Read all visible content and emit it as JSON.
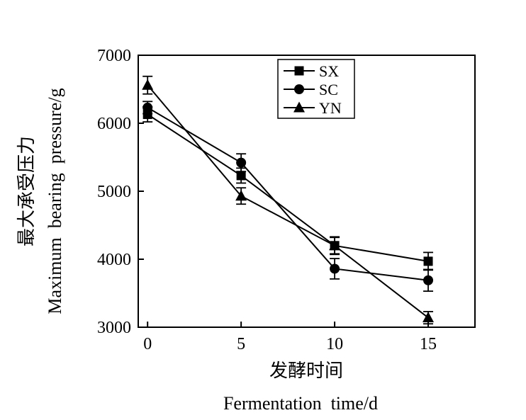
{
  "chart_data": {
    "type": "line",
    "x": [
      0,
      5,
      10,
      15
    ],
    "xlim": [
      -0.5,
      17.5
    ],
    "ylim": [
      3000,
      7000
    ],
    "x_ticks": [
      0,
      5,
      10,
      15
    ],
    "y_ticks": [
      3000,
      4000,
      5000,
      6000,
      7000
    ],
    "x_tick_labels": [
      "0",
      "5",
      "10",
      "15"
    ],
    "y_tick_labels": [
      "3000",
      "4000",
      "5000",
      "6000",
      "7000"
    ],
    "xlabel_cn": "发酵时间",
    "xlabel_en": "Fermentation  time/d",
    "ylabel_cn": "最大承受压力",
    "ylabel_en": "Maximum  bearing  pressure/g",
    "grid": false,
    "legend_position": "top-right",
    "series": [
      {
        "name": "SX",
        "marker": "square",
        "values": [
          6130,
          5230,
          4200,
          3970
        ],
        "errors": [
          110,
          110,
          120,
          130
        ]
      },
      {
        "name": "SC",
        "marker": "circle",
        "values": [
          6230,
          5420,
          3860,
          3690
        ],
        "errors": [
          90,
          130,
          150,
          160
        ]
      },
      {
        "name": "YN",
        "marker": "triangle",
        "values": [
          6560,
          4930,
          4200,
          3140
        ],
        "errors": [
          130,
          120,
          130,
          90
        ]
      }
    ]
  }
}
